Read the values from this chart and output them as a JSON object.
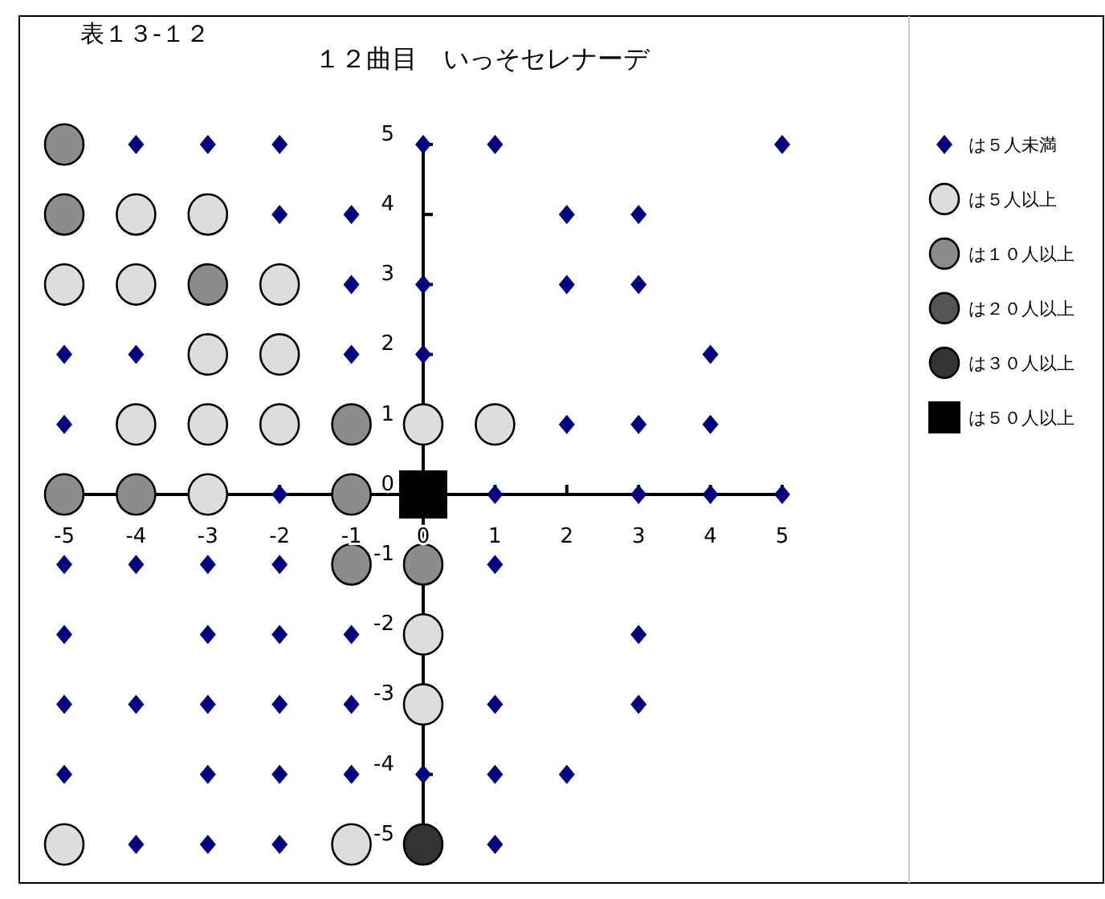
{
  "chart_data": {
    "type": "scatter",
    "title": "１２曲目　いっそセレナーデ",
    "annotations": [
      "表１３-１２"
    ],
    "xlim": [
      -5,
      5
    ],
    "ylim": [
      -5,
      5
    ],
    "xticks": [
      -5,
      -4,
      -3,
      -2,
      -1,
      0,
      1,
      2,
      3,
      4,
      5
    ],
    "yticks": [
      -5,
      -4,
      -3,
      -2,
      -1,
      0,
      1,
      2,
      3,
      4,
      5
    ],
    "grid": false,
    "legend": "right",
    "series": [
      {
        "name": "は５人未満",
        "color": "#000080",
        "marker": "diamond",
        "x": [
          -4,
          -3,
          -2,
          0,
          1,
          5,
          -2,
          -1,
          2,
          3,
          -1,
          0,
          2,
          3,
          -5,
          -4,
          -1,
          0,
          4,
          -5,
          2,
          3,
          4,
          -2,
          1,
          3,
          4,
          5,
          -5,
          -4,
          -3,
          -2,
          1,
          -5,
          -3,
          -2,
          -1,
          3,
          -5,
          -4,
          -3,
          -2,
          -1,
          1,
          3,
          -5,
          -3,
          -2,
          -1,
          0,
          1,
          2,
          -4,
          -3,
          -2,
          1
        ],
        "values": [
          5,
          5,
          5,
          5,
          5,
          5,
          4,
          4,
          4,
          4,
          3,
          3,
          3,
          3,
          2,
          2,
          2,
          2,
          2,
          1,
          1,
          1,
          1,
          0,
          0,
          0,
          0,
          0,
          -1,
          -1,
          -1,
          -1,
          -1,
          -2,
          -2,
          -2,
          -2,
          -2,
          -3,
          -3,
          -3,
          -3,
          -3,
          -3,
          -3,
          -4,
          -4,
          -4,
          -4,
          -4,
          -4,
          -4,
          -5,
          -5,
          -5,
          -5
        ]
      },
      {
        "name": "は５人以上",
        "color": "#dddddd",
        "marker": "circle",
        "x": [
          -4,
          -3,
          -5,
          -4,
          -2,
          -3,
          -2,
          -4,
          -3,
          -2,
          0,
          1,
          -3,
          0,
          0,
          -5,
          -1
        ],
        "values": [
          4,
          4,
          3,
          3,
          3,
          2,
          2,
          1,
          1,
          1,
          1,
          1,
          0,
          -2,
          -3,
          -5,
          -5
        ]
      },
      {
        "name": "は１０人以上",
        "color": "#8c8c8c",
        "marker": "circle",
        "x": [
          -5,
          -5,
          -3,
          -1,
          -5,
          -4,
          -1,
          -1,
          0
        ],
        "values": [
          5,
          4,
          3,
          1,
          0,
          0,
          0,
          -1,
          -1
        ]
      },
      {
        "name": "は２０人以上",
        "color": "#555555",
        "marker": "circle"
      },
      {
        "name": "は３０人以上",
        "color": "#333333",
        "marker": "circle",
        "x": [
          0
        ],
        "values": [
          -5
        ]
      },
      {
        "name": "は５０人以上",
        "color": "#000000",
        "marker": "square",
        "x": [
          0
        ],
        "values": [
          0
        ]
      }
    ]
  }
}
